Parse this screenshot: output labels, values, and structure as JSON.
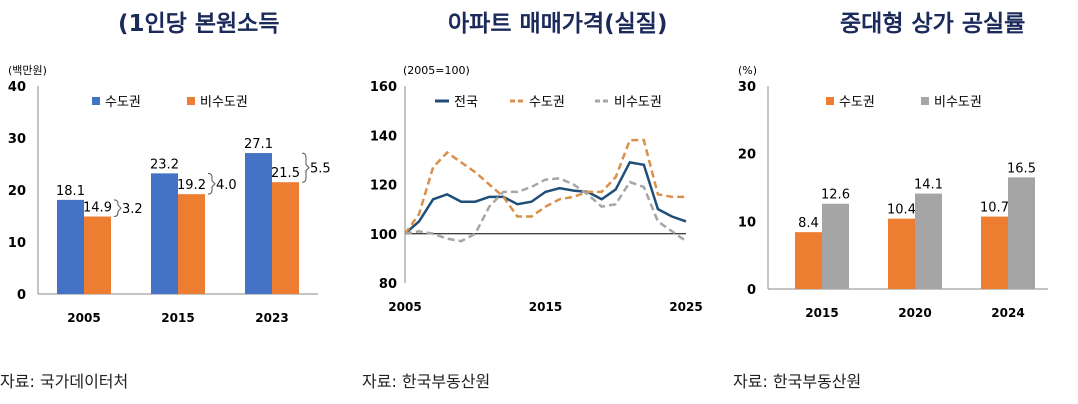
{
  "titles": [
    "(1인당 본원소득",
    "아파트 매매가격(실질)",
    "중대형 상가 공실률"
  ],
  "sources": [
    "자료: 국가데이터처",
    "자료: 한국부동산원",
    "자료: 한국부동산원"
  ],
  "chart_data": [
    {
      "type": "bar",
      "title": "1인당 본원소득",
      "ylabel": "(백만원)",
      "ylim": [
        0,
        40
      ],
      "yticks": [
        0,
        10,
        20,
        30,
        40
      ],
      "categories": [
        "2005",
        "2015",
        "2023"
      ],
      "series": [
        {
          "name": "수도권",
          "color": "#4472c4",
          "values": [
            18.1,
            23.2,
            27.1
          ]
        },
        {
          "name": "비수도권",
          "color": "#ed7d31",
          "values": [
            14.9,
            19.2,
            21.5
          ]
        }
      ],
      "gap_annotations": [
        "3.2",
        "4.0",
        "5.5"
      ],
      "legend": "top-left"
    },
    {
      "type": "line",
      "title": "아파트 매매가격(실질)",
      "ylabel": "(2005=100)",
      "ylim": [
        80,
        160
      ],
      "yticks": [
        80,
        100,
        120,
        140,
        160
      ],
      "xlim": [
        2005,
        2025
      ],
      "xticks": [
        "2005",
        "2015",
        "2025"
      ],
      "x": [
        2005,
        2006,
        2007,
        2008,
        2009,
        2010,
        2011,
        2012,
        2013,
        2014,
        2015,
        2016,
        2017,
        2018,
        2019,
        2020,
        2021,
        2022,
        2023,
        2024,
        2025
      ],
      "series": [
        {
          "name": "전국",
          "color": "#1f4e79",
          "style": "solid",
          "values": [
            100,
            105,
            114,
            116,
            113,
            113,
            115,
            115,
            112,
            113,
            117,
            118.5,
            117.5,
            117,
            114,
            118,
            129,
            128,
            110,
            107,
            105
          ]
        },
        {
          "name": "수도권",
          "color": "#d9904a",
          "style": "dashed",
          "values": [
            100,
            108,
            127,
            133,
            129,
            125,
            120,
            115,
            107,
            107,
            111,
            114,
            115,
            117,
            117,
            123,
            138,
            138,
            116,
            115,
            115
          ]
        },
        {
          "name": "비수도권",
          "color": "#a6a6a6",
          "style": "dashed",
          "values": [
            100,
            101,
            100,
            98,
            97,
            100,
            111,
            117,
            117,
            119,
            122,
            122.5,
            120,
            116,
            111,
            112,
            121,
            119,
            105,
            101,
            97
          ]
        }
      ],
      "legend": "top"
    },
    {
      "type": "bar",
      "title": "중대형 상가 공실률",
      "ylabel": "(%)",
      "ylim": [
        0,
        30
      ],
      "yticks": [
        0,
        10,
        20,
        30
      ],
      "categories": [
        "2015",
        "2020",
        "2024"
      ],
      "series": [
        {
          "name": "수도권",
          "color": "#ed7d31",
          "values": [
            8.4,
            10.4,
            10.7
          ]
        },
        {
          "name": "비수도권",
          "color": "#a5a5a5",
          "values": [
            12.6,
            14.1,
            16.5
          ]
        }
      ],
      "legend": "top-left"
    }
  ]
}
